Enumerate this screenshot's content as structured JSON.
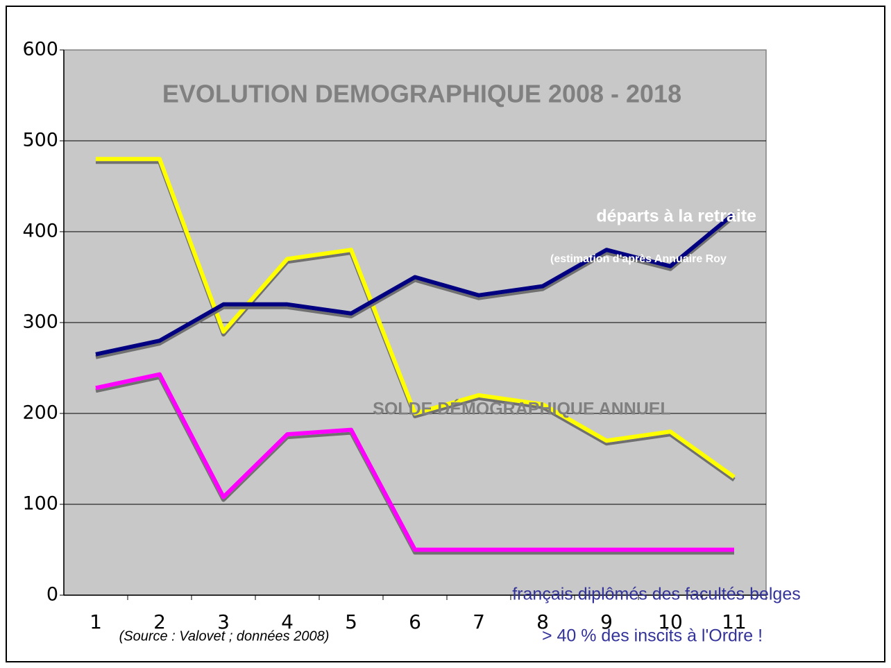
{
  "chart_data": {
    "type": "line",
    "title": "EVOLUTION DEMOGRAPHIQUE 2008 - 2018",
    "categories": [
      "1",
      "2",
      "3",
      "4",
      "5",
      "6",
      "7",
      "8",
      "9",
      "10",
      "11"
    ],
    "series": [
      {
        "color": "#ffff00",
        "values": [
          480,
          480,
          290,
          370,
          380,
          200,
          220,
          210,
          170,
          180,
          130
        ]
      },
      {
        "color": "#000080",
        "values": [
          265,
          280,
          320,
          320,
          310,
          350,
          330,
          340,
          380,
          362,
          420
        ]
      },
      {
        "color": "#ff00ff",
        "values": [
          228,
          243,
          108,
          177,
          182,
          50,
          50,
          50,
          50,
          50,
          50
        ]
      }
    ],
    "ylim": [
      0,
      600
    ],
    "yticks": [
      0,
      100,
      200,
      300,
      400,
      500,
      600
    ],
    "grid": true,
    "annotations": {
      "retirement": "départs à la retraite",
      "estimate": "(estimation d'après Annuaire Roy",
      "balance": "SOLDE DÉMOGRAPHIQUE ANNUEL",
      "french": "français diplômés des facultés belges",
      "share": "> 40 % des inscits à l'Ordre !",
      "source": "(Source : Valovet ; données 2008)"
    }
  }
}
